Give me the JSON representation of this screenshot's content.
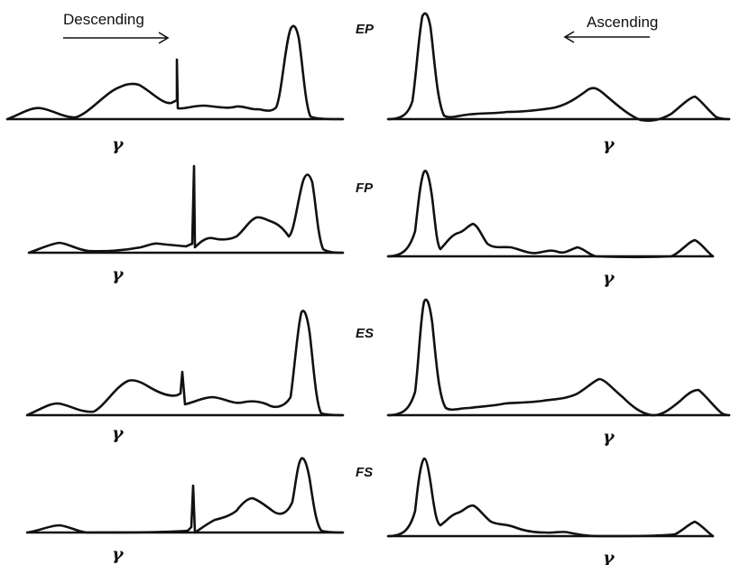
{
  "headers": {
    "descending": "Descending",
    "ascending": "Ascending"
  },
  "rows": [
    {
      "label": "EP",
      "left_marker": "γ",
      "right_marker": "γ"
    },
    {
      "label": "FP",
      "left_marker": "γ",
      "right_marker": "γ"
    },
    {
      "label": "ES",
      "left_marker": "γ",
      "right_marker": "γ"
    },
    {
      "label": "FS",
      "left_marker": "γ",
      "right_marker": "γ"
    }
  ]
}
